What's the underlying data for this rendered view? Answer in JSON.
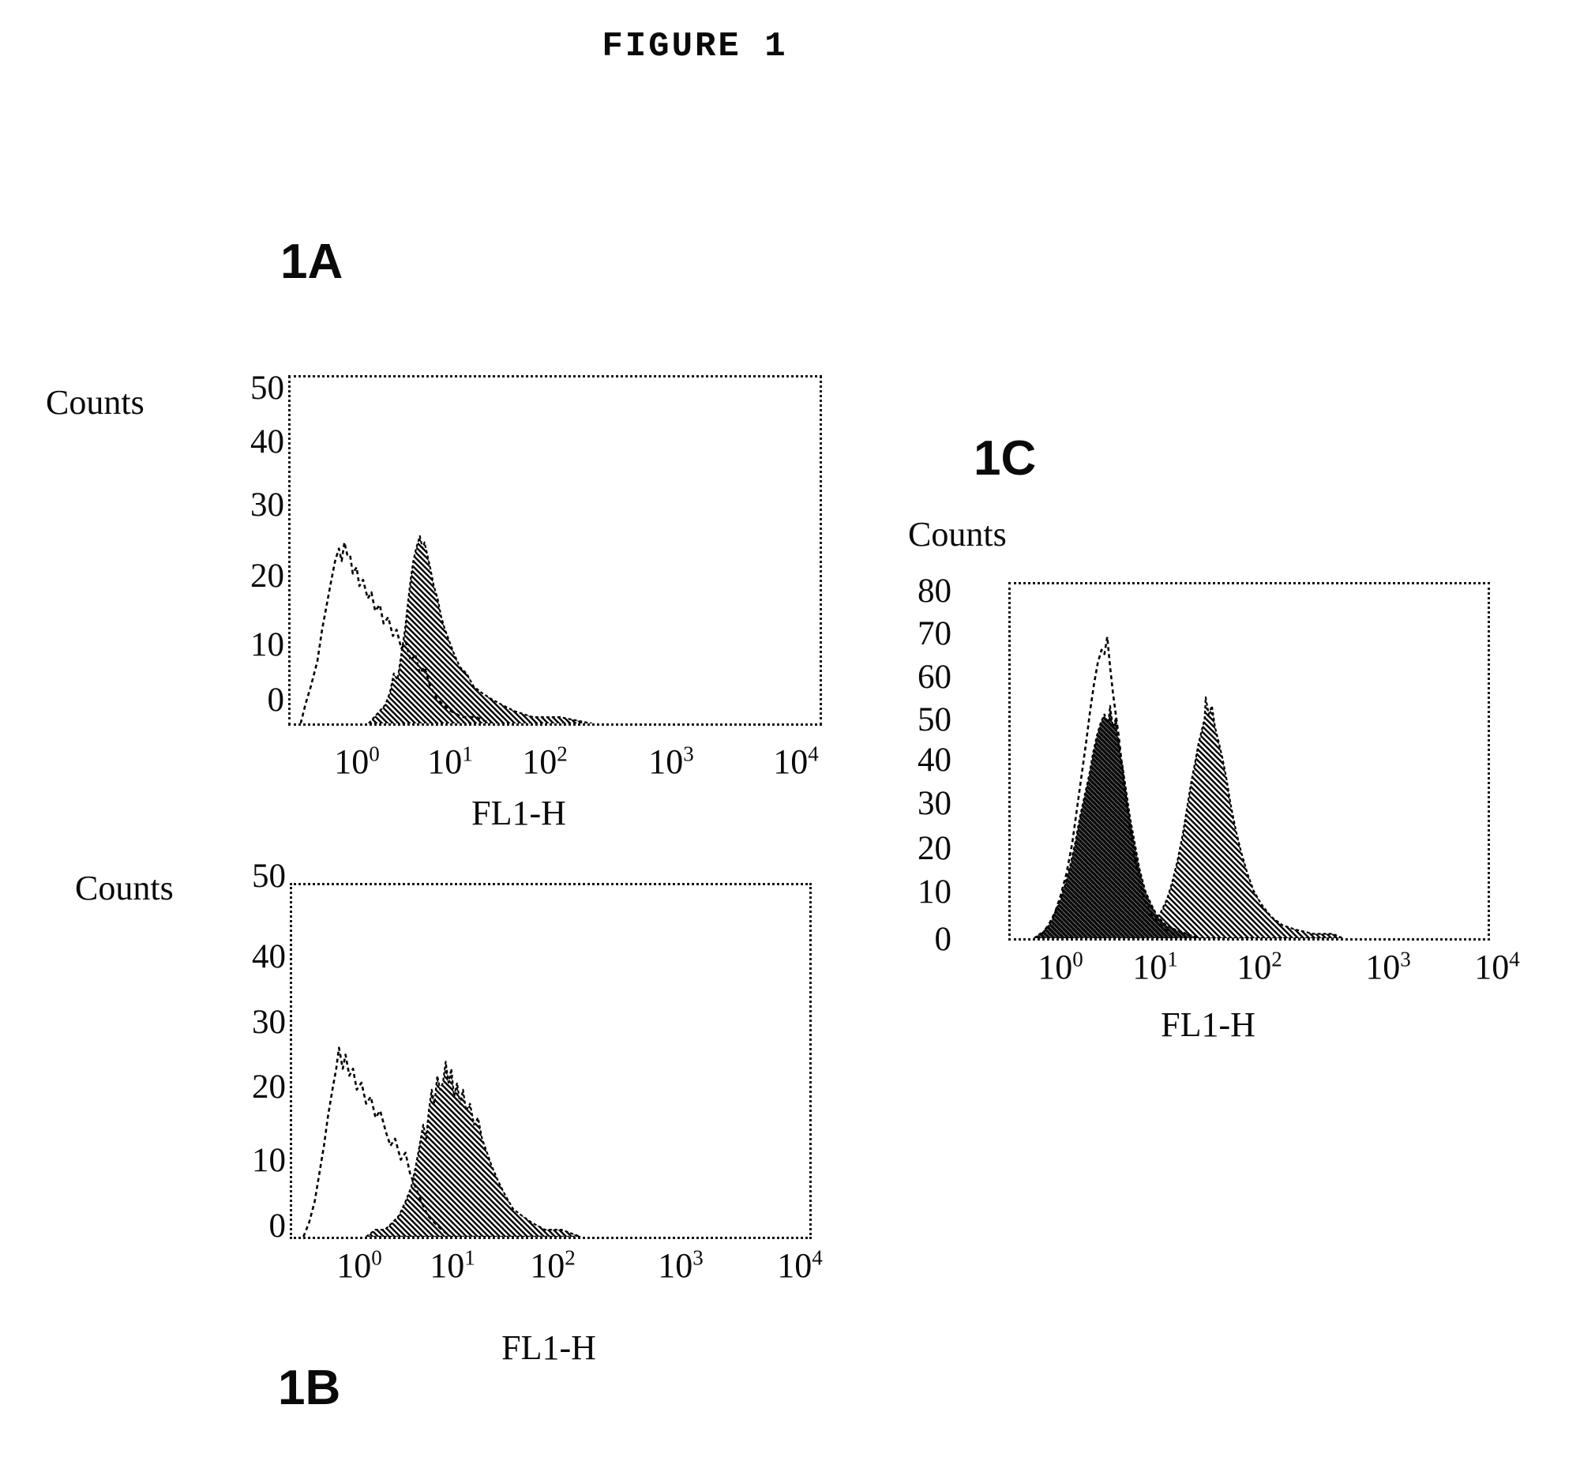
{
  "figure_title": "FIGURE 1",
  "chart_data": [
    {
      "id": "1A",
      "type": "area",
      "panel_label": "1A",
      "ylabel": "Counts",
      "xlabel": "FL1-H",
      "x_scale": "log10",
      "x_tick_base": "10",
      "x_tick_exponents": [
        0,
        1,
        2,
        3,
        4
      ],
      "y_ticks": [
        50,
        40,
        30,
        20,
        10,
        0
      ],
      "ylim": [
        0,
        50
      ],
      "xlim_log": [
        -0.65,
        4
      ],
      "grid": "off",
      "legend": "none",
      "series": [
        {
          "name": "hatched filled histogram",
          "style": "hatch",
          "points": [
            [
              0.1,
              0
            ],
            [
              0.16,
              1
            ],
            [
              0.22,
              2
            ],
            [
              0.28,
              3
            ],
            [
              0.33,
              5
            ],
            [
              0.37,
              8
            ],
            [
              0.41,
              7
            ],
            [
              0.45,
              11
            ],
            [
              0.49,
              15
            ],
            [
              0.52,
              19
            ],
            [
              0.55,
              23
            ],
            [
              0.58,
              26
            ],
            [
              0.61,
              28
            ],
            [
              0.65,
              30
            ],
            [
              0.68,
              28
            ],
            [
              0.7,
              29
            ],
            [
              0.73,
              27
            ],
            [
              0.76,
              25
            ],
            [
              0.8,
              22
            ],
            [
              0.84,
              20
            ],
            [
              0.88,
              17
            ],
            [
              0.92,
              15
            ],
            [
              0.97,
              13
            ],
            [
              1.02,
              11
            ],
            [
              1.08,
              9
            ],
            [
              1.15,
              8
            ],
            [
              1.22,
              6
            ],
            [
              1.3,
              5
            ],
            [
              1.4,
              4
            ],
            [
              1.52,
              3
            ],
            [
              1.65,
              2
            ],
            [
              1.85,
              1
            ],
            [
              2.1,
              1
            ],
            [
              2.35,
              0
            ]
          ]
        },
        {
          "name": "open outline histogram",
          "style": "open",
          "points": [
            [
              -0.63,
              0
            ],
            [
              -0.58,
              3
            ],
            [
              -0.52,
              6
            ],
            [
              -0.45,
              10
            ],
            [
              -0.4,
              15
            ],
            [
              -0.35,
              19
            ],
            [
              -0.3,
              23
            ],
            [
              -0.26,
              26
            ],
            [
              -0.22,
              28
            ],
            [
              -0.19,
              26
            ],
            [
              -0.16,
              29
            ],
            [
              -0.13,
              27
            ],
            [
              -0.1,
              27
            ],
            [
              -0.07,
              24
            ],
            [
              -0.03,
              25
            ],
            [
              0.0,
              22
            ],
            [
              0.04,
              23
            ],
            [
              0.09,
              20
            ],
            [
              0.13,
              21
            ],
            [
              0.17,
              18
            ],
            [
              0.22,
              19
            ],
            [
              0.26,
              16
            ],
            [
              0.31,
              17
            ],
            [
              0.36,
              14
            ],
            [
              0.4,
              15
            ],
            [
              0.45,
              12
            ],
            [
              0.5,
              13
            ],
            [
              0.55,
              10
            ],
            [
              0.6,
              11
            ],
            [
              0.65,
              8
            ],
            [
              0.7,
              9
            ],
            [
              0.76,
              6
            ],
            [
              0.83,
              4
            ],
            [
              0.9,
              3
            ],
            [
              0.98,
              2
            ],
            [
              1.1,
              1
            ],
            [
              1.25,
              1
            ],
            [
              1.4,
              0
            ]
          ]
        }
      ]
    },
    {
      "id": "1B",
      "type": "area",
      "panel_label": "1B",
      "ylabel": "Counts",
      "xlabel": "FL1-H",
      "x_scale": "log10",
      "x_tick_base": "10",
      "x_tick_exponents": [
        0,
        1,
        2,
        3,
        4
      ],
      "y_ticks": [
        50,
        40,
        30,
        20,
        10,
        0
      ],
      "ylim": [
        0,
        50
      ],
      "xlim_log": [
        -0.65,
        4
      ],
      "grid": "off",
      "legend": "none",
      "series": [
        {
          "name": "hatched filled histogram",
          "style": "hatch",
          "points": [
            [
              0.05,
              0
            ],
            [
              0.15,
              1
            ],
            [
              0.25,
              1
            ],
            [
              0.33,
              2
            ],
            [
              0.4,
              3
            ],
            [
              0.47,
              5
            ],
            [
              0.53,
              7
            ],
            [
              0.58,
              10
            ],
            [
              0.62,
              13
            ],
            [
              0.66,
              16
            ],
            [
              0.69,
              14
            ],
            [
              0.72,
              18
            ],
            [
              0.75,
              21
            ],
            [
              0.78,
              19
            ],
            [
              0.81,
              23
            ],
            [
              0.84,
              21
            ],
            [
              0.87,
              22
            ],
            [
              0.9,
              25
            ],
            [
              0.93,
              22
            ],
            [
              0.96,
              24
            ],
            [
              0.99,
              20
            ],
            [
              1.02,
              22
            ],
            [
              1.05,
              19
            ],
            [
              1.08,
              21
            ],
            [
              1.11,
              18
            ],
            [
              1.15,
              19
            ],
            [
              1.19,
              16
            ],
            [
              1.23,
              17
            ],
            [
              1.27,
              14
            ],
            [
              1.32,
              12
            ],
            [
              1.37,
              10
            ],
            [
              1.43,
              8
            ],
            [
              1.5,
              6
            ],
            [
              1.58,
              4
            ],
            [
              1.67,
              3
            ],
            [
              1.77,
              2
            ],
            [
              1.9,
              1
            ],
            [
              2.05,
              1
            ],
            [
              2.2,
              0
            ]
          ]
        },
        {
          "name": "open outline histogram",
          "style": "open",
          "points": [
            [
              -0.62,
              0
            ],
            [
              -0.56,
              2
            ],
            [
              -0.5,
              5
            ],
            [
              -0.45,
              9
            ],
            [
              -0.4,
              13
            ],
            [
              -0.36,
              17
            ],
            [
              -0.31,
              21
            ],
            [
              -0.27,
              24
            ],
            [
              -0.24,
              27
            ],
            [
              -0.2,
              24
            ],
            [
              -0.17,
              26
            ],
            [
              -0.13,
              23
            ],
            [
              -0.09,
              24
            ],
            [
              -0.05,
              21
            ],
            [
              0.0,
              22
            ],
            [
              0.05,
              19
            ],
            [
              0.1,
              20
            ],
            [
              0.15,
              17
            ],
            [
              0.2,
              18
            ],
            [
              0.26,
              15
            ],
            [
              0.31,
              13
            ],
            [
              0.36,
              14
            ],
            [
              0.42,
              11
            ],
            [
              0.47,
              12
            ],
            [
              0.52,
              9
            ],
            [
              0.58,
              7
            ],
            [
              0.64,
              5
            ],
            [
              0.71,
              3
            ],
            [
              0.78,
              2
            ],
            [
              0.86,
              1
            ],
            [
              0.95,
              0
            ]
          ]
        }
      ]
    },
    {
      "id": "1C",
      "type": "area",
      "panel_label": "1C",
      "ylabel": "Counts",
      "xlabel": "FL1-H",
      "x_scale": "log10",
      "x_tick_base": "10",
      "x_tick_exponents": [
        0,
        1,
        2,
        3,
        4
      ],
      "y_ticks": [
        80,
        70,
        60,
        50,
        40,
        30,
        20,
        10,
        0
      ],
      "ylim": [
        0,
        80
      ],
      "xlim_log": [
        -0.35,
        4
      ],
      "grid": "off",
      "legend": "none",
      "series": [
        {
          "name": "hatched filled histogram",
          "style": "hatch",
          "points": [
            [
              -0.25,
              0
            ],
            [
              -0.15,
              1
            ],
            [
              -0.05,
              2
            ],
            [
              0.1,
              3
            ],
            [
              0.25,
              3
            ],
            [
              0.4,
              4
            ],
            [
              0.55,
              3
            ],
            [
              0.7,
              3
            ],
            [
              0.8,
              2
            ],
            [
              0.9,
              3
            ],
            [
              0.97,
              4
            ],
            [
              1.03,
              6
            ],
            [
              1.09,
              9
            ],
            [
              1.14,
              13
            ],
            [
              1.19,
              18
            ],
            [
              1.24,
              24
            ],
            [
              1.28,
              30
            ],
            [
              1.32,
              36
            ],
            [
              1.36,
              41
            ],
            [
              1.39,
              45
            ],
            [
              1.42,
              48
            ],
            [
              1.45,
              51
            ],
            [
              1.46,
              56
            ],
            [
              1.49,
              52
            ],
            [
              1.52,
              54
            ],
            [
              1.55,
              49
            ],
            [
              1.58,
              46
            ],
            [
              1.62,
              42
            ],
            [
              1.66,
              37
            ],
            [
              1.7,
              31
            ],
            [
              1.75,
              25
            ],
            [
              1.8,
              20
            ],
            [
              1.86,
              15
            ],
            [
              1.92,
              11
            ],
            [
              1.99,
              8
            ],
            [
              2.07,
              5
            ],
            [
              2.16,
              3
            ],
            [
              2.26,
              2
            ],
            [
              2.4,
              1
            ],
            [
              2.55,
              1
            ],
            [
              2.63,
              0
            ]
          ]
        },
        {
          "name": "solid black filled histogram",
          "style": "solid",
          "points": [
            [
              -0.3,
              0
            ],
            [
              -0.24,
              1
            ],
            [
              -0.17,
              2
            ],
            [
              -0.1,
              5
            ],
            [
              -0.04,
              8
            ],
            [
              0.02,
              12
            ],
            [
              0.08,
              17
            ],
            [
              0.13,
              22
            ],
            [
              0.18,
              28
            ],
            [
              0.23,
              33
            ],
            [
              0.28,
              38
            ],
            [
              0.32,
              43
            ],
            [
              0.36,
              47
            ],
            [
              0.4,
              50
            ],
            [
              0.44,
              52
            ],
            [
              0.48,
              50
            ],
            [
              0.5,
              54
            ],
            [
              0.53,
              49
            ],
            [
              0.56,
              51
            ],
            [
              0.59,
              45
            ],
            [
              0.63,
              40
            ],
            [
              0.67,
              34
            ],
            [
              0.71,
              28
            ],
            [
              0.76,
              22
            ],
            [
              0.81,
              16
            ],
            [
              0.87,
              11
            ],
            [
              0.93,
              8
            ],
            [
              1.0,
              5
            ],
            [
              1.08,
              3
            ],
            [
              1.17,
              2
            ],
            [
              1.28,
              1
            ],
            [
              1.4,
              0
            ]
          ]
        },
        {
          "name": "open outline histogram",
          "style": "open",
          "points": [
            [
              -0.3,
              0
            ],
            [
              -0.22,
              1
            ],
            [
              -0.15,
              3
            ],
            [
              -0.08,
              6
            ],
            [
              -0.02,
              10
            ],
            [
              0.04,
              15
            ],
            [
              0.1,
              22
            ],
            [
              0.15,
              30
            ],
            [
              0.2,
              38
            ],
            [
              0.25,
              46
            ],
            [
              0.29,
              53
            ],
            [
              0.33,
              59
            ],
            [
              0.37,
              64
            ],
            [
              0.41,
              67
            ],
            [
              0.44,
              66
            ],
            [
              0.47,
              70
            ],
            [
              0.5,
              63
            ],
            [
              0.53,
              57
            ],
            [
              0.56,
              52
            ],
            [
              0.59,
              47
            ],
            [
              0.62,
              41
            ],
            [
              0.66,
              34
            ],
            [
              0.7,
              27
            ],
            [
              0.75,
              20
            ],
            [
              0.8,
              14
            ],
            [
              0.86,
              9
            ],
            [
              0.92,
              6
            ],
            [
              0.99,
              4
            ],
            [
              1.07,
              2
            ],
            [
              1.16,
              1
            ],
            [
              1.28,
              0
            ]
          ]
        }
      ]
    }
  ]
}
